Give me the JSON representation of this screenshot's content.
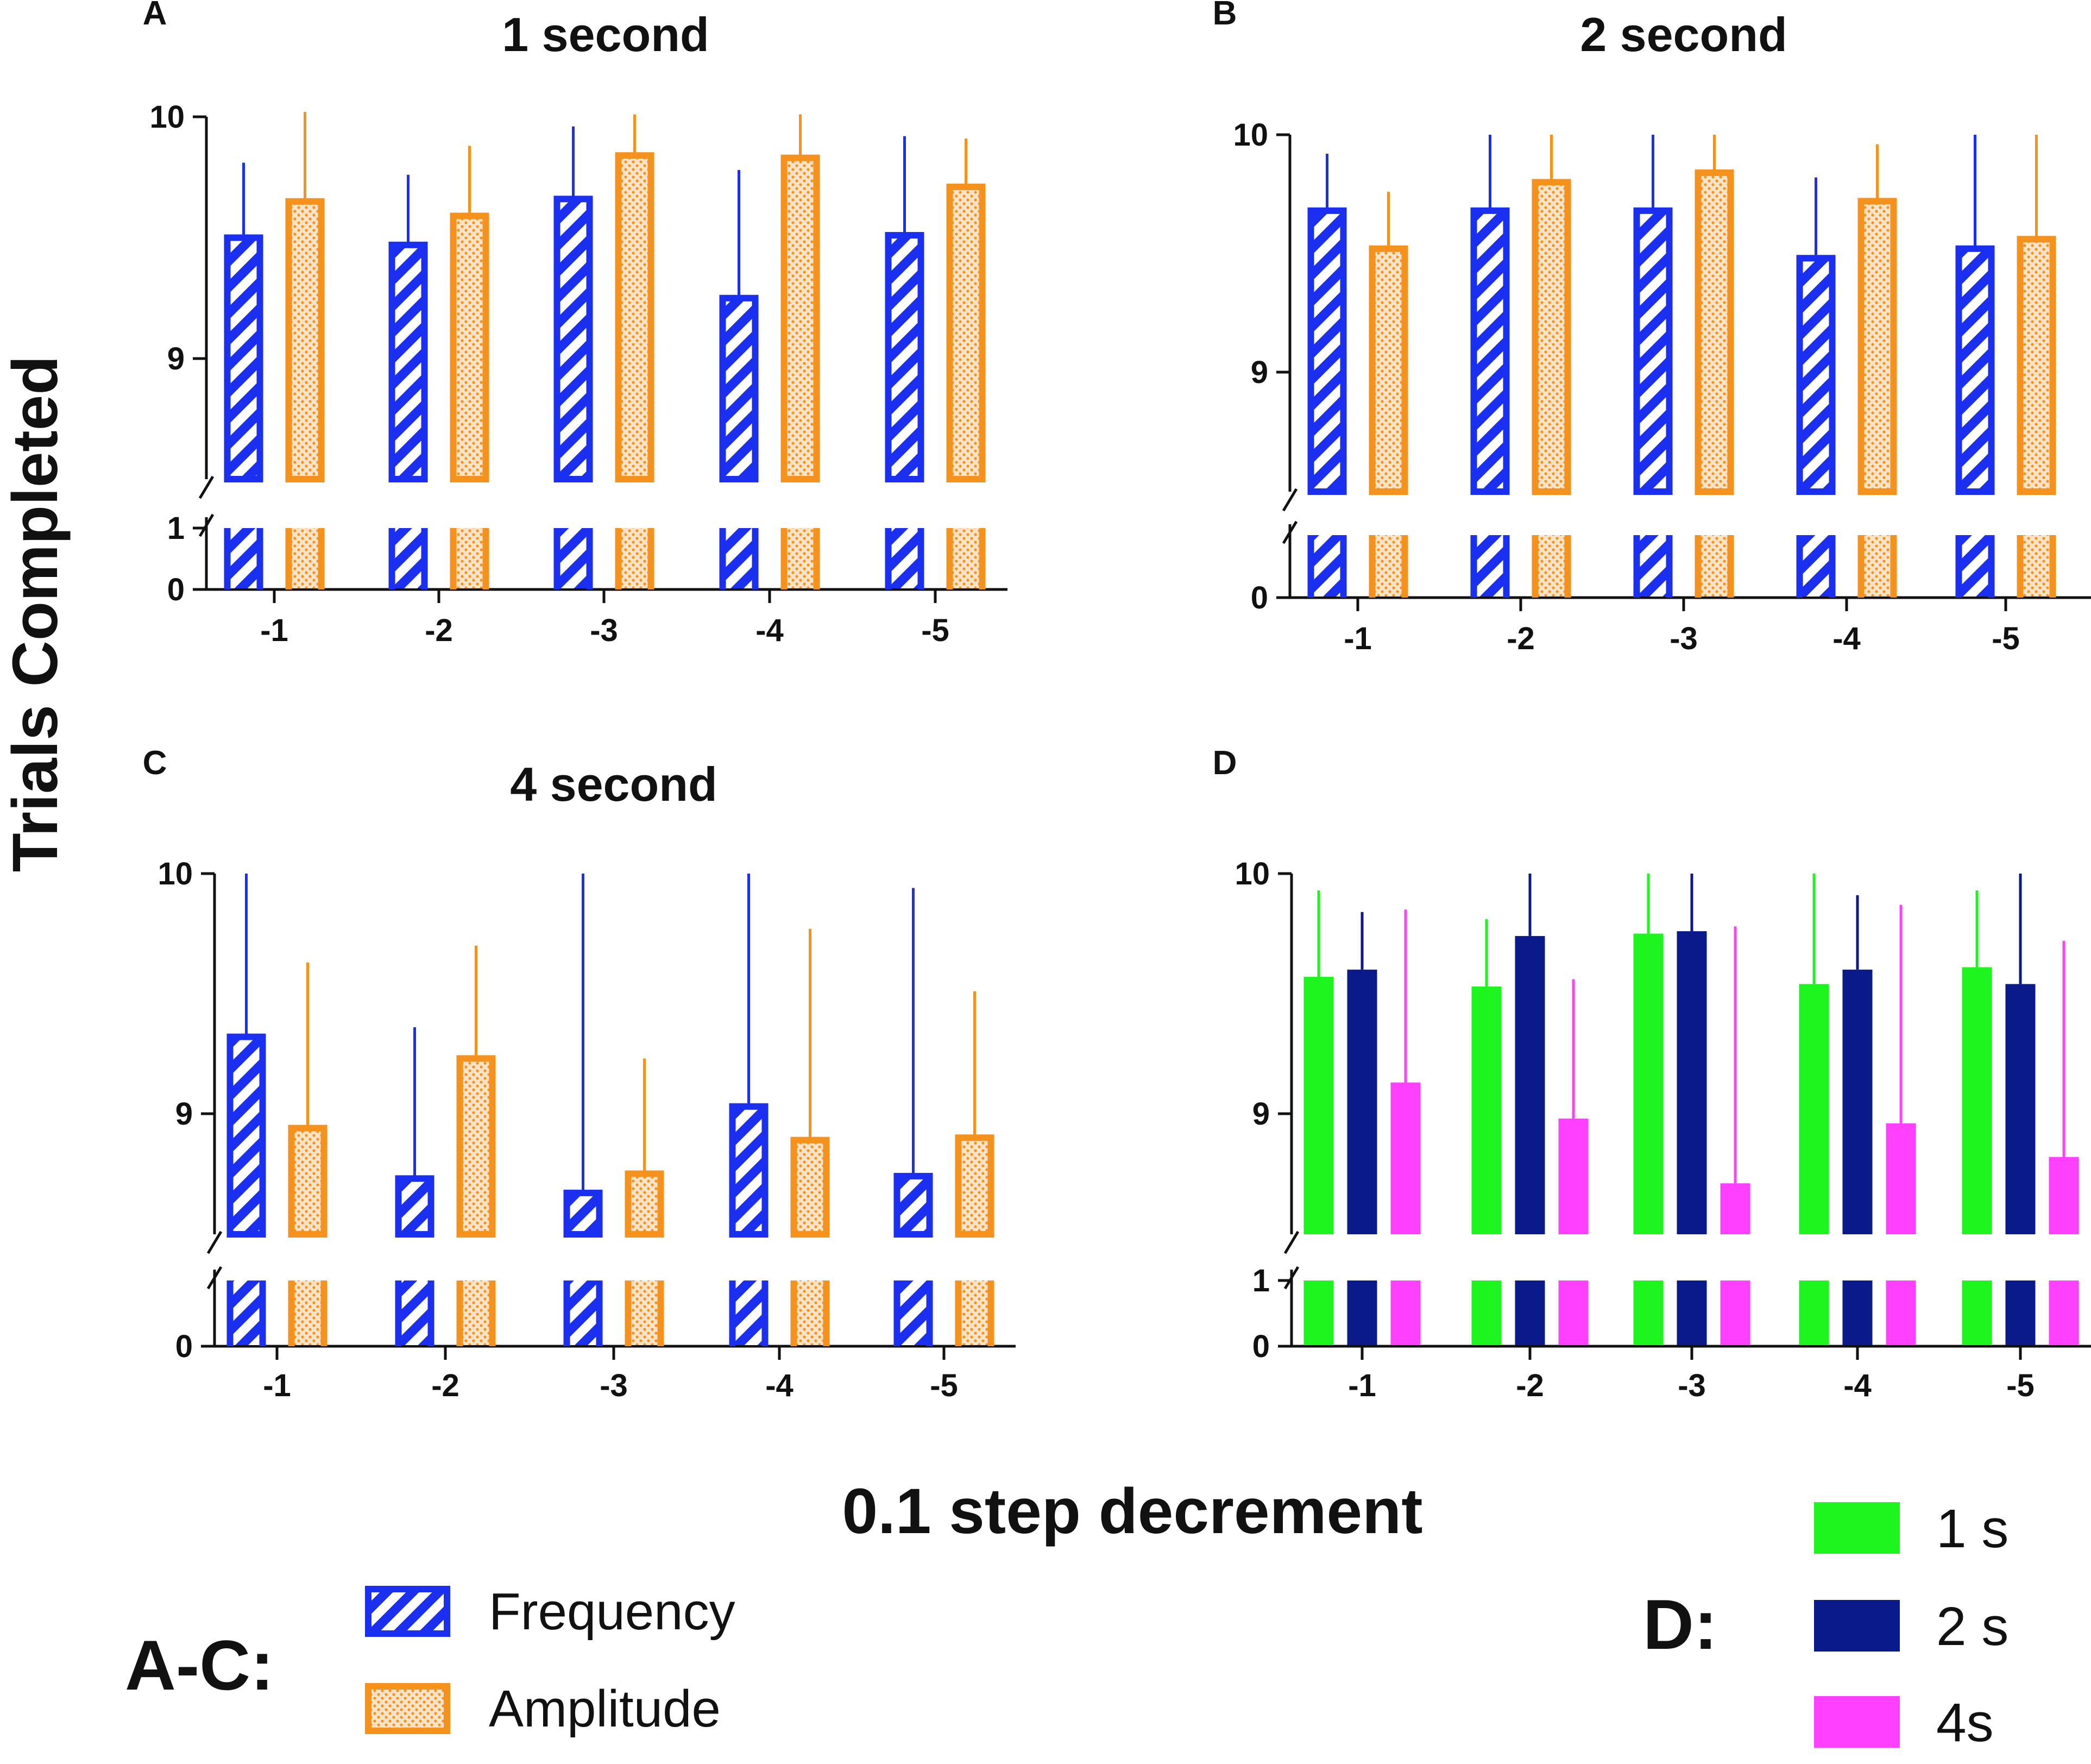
{
  "figure": {
    "y_axis_label": "Trials Completed",
    "x_axis_label": "0.1 step decrement"
  },
  "colors": {
    "frequency": "#1a2ff0",
    "amplitude": "#f5921e",
    "s1": "#1ef51e",
    "s2": "#0a1a8a",
    "s4": "#ff40ff",
    "axis": "#111111"
  },
  "legend_ac": {
    "label": "A-C:",
    "items": [
      {
        "name": "Frequency",
        "pattern": "hatch",
        "color": "frequency"
      },
      {
        "name": "Amplitude",
        "pattern": "dots",
        "color": "amplitude"
      }
    ]
  },
  "legend_d": {
    "label": "D:",
    "items": [
      {
        "name": "1 s",
        "color": "s1"
      },
      {
        "name": "2 s",
        "color": "s2"
      },
      {
        "name": "4s",
        "color": "s4"
      }
    ]
  },
  "chart_data": [
    {
      "panel": "A",
      "title": "1 second",
      "type": "bar",
      "categories": [
        "-1",
        "-2",
        "-3",
        "-4",
        "-5"
      ],
      "ylim": [
        8.5,
        10
      ],
      "yticks": [
        9,
        10
      ],
      "lower_ticks": [
        0,
        1
      ],
      "series": [
        {
          "name": "Frequency",
          "pattern": "hatch",
          "color": "frequency",
          "values": [
            9.5,
            9.47,
            9.66,
            9.25,
            9.51
          ],
          "errors": [
            0.31,
            0.29,
            0.3,
            0.53,
            0.41
          ]
        },
        {
          "name": "Amplitude",
          "pattern": "dots",
          "color": "amplitude",
          "values": [
            9.65,
            9.59,
            9.84,
            9.83,
            9.71
          ],
          "errors": [
            0.37,
            0.29,
            0.17,
            0.18,
            0.2
          ]
        }
      ]
    },
    {
      "panel": "B",
      "title": "2 second",
      "type": "bar",
      "categories": [
        "-1",
        "-2",
        "-3",
        "-4",
        "-5"
      ],
      "ylim": [
        8.5,
        10
      ],
      "yticks": [
        9,
        10
      ],
      "lower_ticks": [
        0
      ],
      "series": [
        {
          "name": "Frequency",
          "pattern": "hatch",
          "color": "frequency",
          "values": [
            9.68,
            9.68,
            9.68,
            9.48,
            9.52
          ],
          "errors": [
            0.24,
            0.32,
            0.32,
            0.34,
            0.48
          ]
        },
        {
          "name": "Amplitude",
          "pattern": "dots",
          "color": "amplitude",
          "values": [
            9.52,
            9.8,
            9.84,
            9.72,
            9.56
          ],
          "errors": [
            0.24,
            0.2,
            0.16,
            0.24,
            0.44
          ]
        }
      ]
    },
    {
      "panel": "C",
      "title": "4 second",
      "type": "bar",
      "categories": [
        "-1",
        "-2",
        "-3",
        "-4",
        "-5"
      ],
      "ylim": [
        8.5,
        10
      ],
      "yticks": [
        9,
        10
      ],
      "lower_ticks": [
        0
      ],
      "series": [
        {
          "name": "Frequency",
          "pattern": "hatch",
          "color": "frequency",
          "values": [
            9.32,
            8.73,
            8.67,
            9.03,
            8.74
          ],
          "errors": [
            0.68,
            0.63,
            1.33,
            0.97,
            1.2
          ]
        },
        {
          "name": "Amplitude",
          "pattern": "dots",
          "color": "amplitude",
          "values": [
            8.94,
            9.23,
            8.75,
            8.89,
            8.9
          ],
          "errors": [
            0.69,
            0.47,
            0.48,
            0.88,
            0.61
          ]
        }
      ]
    },
    {
      "panel": "D",
      "title": "",
      "type": "bar",
      "categories": [
        "-1",
        "-2",
        "-3",
        "-4",
        "-5"
      ],
      "ylim": [
        8.5,
        10
      ],
      "yticks": [
        9,
        10
      ],
      "lower_ticks": [
        0,
        1
      ],
      "series": [
        {
          "name": "1 s",
          "pattern": "solid",
          "color": "s1",
          "values": [
            9.57,
            9.53,
            9.75,
            9.54,
            9.61
          ],
          "errors": [
            0.36,
            0.28,
            0.25,
            0.46,
            0.32
          ]
        },
        {
          "name": "2 s",
          "pattern": "solid",
          "color": "s2",
          "values": [
            9.6,
            9.74,
            9.76,
            9.6,
            9.54
          ],
          "errors": [
            0.24,
            0.26,
            0.24,
            0.31,
            0.46
          ]
        },
        {
          "name": "4s",
          "pattern": "solid",
          "color": "s4",
          "values": [
            9.13,
            8.98,
            8.71,
            8.96,
            8.82
          ],
          "errors": [
            0.72,
            0.58,
            1.07,
            0.91,
            0.9
          ]
        }
      ]
    }
  ]
}
